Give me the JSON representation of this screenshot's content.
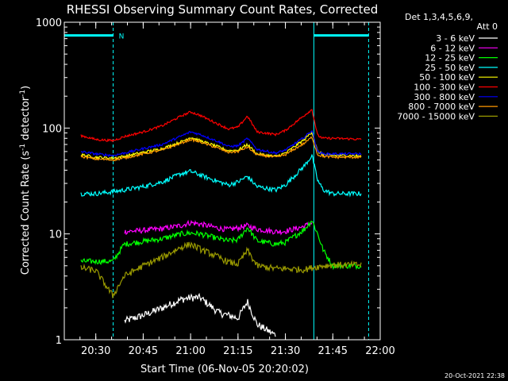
{
  "chart_data": {
    "type": "line",
    "title": "RHESSI Observing Summary Count Rates, Corrected",
    "xlabel": "Start Time (06-Nov-05 20:20:02)",
    "ylabel": "Corrected Count Rate (s⁻¹ detector⁻¹)",
    "ylabel_parts": {
      "main": "Corrected Count Rate (s",
      "sup1": "-1",
      "mid": " detector",
      "sup2": "-1",
      "end": ")"
    },
    "yscale": "log",
    "ylim": [
      1,
      1000
    ],
    "xlim": [
      "20:20:02",
      "22:00"
    ],
    "x_ticks": [
      "20:30",
      "20:45",
      "21:00",
      "21:15",
      "21:30",
      "21:45",
      "22:00"
    ],
    "y_ticks": [
      "1",
      "10",
      "100",
      "1000"
    ],
    "legend_header": [
      "Det 1,3,4,5,6,9,",
      "Att 0"
    ],
    "legend_position": "right",
    "timestamp": "20-Oct-2021 22:38",
    "annotations": [
      {
        "label": "N",
        "x": "20:35:30"
      }
    ],
    "markers": [
      {
        "type": "vline",
        "x": "20:20:02",
        "color": "#00ffff",
        "style": "solid"
      },
      {
        "type": "vline",
        "x": "20:35:30",
        "color": "#00ffff",
        "style": "dashed"
      },
      {
        "type": "vline",
        "x": "21:39:00",
        "color": "#00ffff",
        "style": "solid"
      },
      {
        "type": "vline",
        "x": "21:56:20",
        "color": "#00ffff",
        "style": "dashed"
      }
    ],
    "night_bars": [
      {
        "x": [
          "20:20:02",
          "20:35:30"
        ],
        "y": 750
      },
      {
        "x": [
          "21:39:00",
          "21:56:20"
        ],
        "y": 750
      }
    ],
    "x_hours": [
      20.42,
      20.5,
      20.59,
      20.65,
      20.75,
      20.85,
      20.95,
      21.0,
      21.05,
      21.15,
      21.2,
      21.25,
      21.3,
      21.35,
      21.45,
      21.5,
      21.6,
      21.64,
      21.67,
      21.7,
      21.75,
      21.85,
      21.9
    ],
    "series": [
      {
        "name": "3 - 6 keV",
        "color": "#ffffff",
        "values": [
          null,
          null,
          null,
          1.5,
          1.7,
          2.0,
          2.4,
          2.5,
          2.5,
          1.8,
          1.7,
          1.6,
          2.3,
          1.4,
          1.1,
          null,
          null,
          null,
          null,
          null,
          null,
          null,
          null
        ]
      },
      {
        "name": "6 - 12 keV",
        "color": "#ff00ff",
        "values": [
          null,
          null,
          null,
          10.5,
          10.8,
          11.2,
          12.0,
          12.8,
          12.4,
          11.3,
          11.0,
          11.4,
          12.0,
          11.1,
          10.5,
          10.6,
          11.8,
          12.8,
          null,
          null,
          null,
          null,
          null
        ]
      },
      {
        "name": "12 - 25 keV",
        "color": "#00ff00",
        "values": [
          5.5,
          5.5,
          5.5,
          8.0,
          8.5,
          9.0,
          10.0,
          10.2,
          10.0,
          9.0,
          8.6,
          8.8,
          11.5,
          8.6,
          8.0,
          8.3,
          11.0,
          13.5,
          10.0,
          7.0,
          5.0,
          5.0,
          5.0
        ]
      },
      {
        "name": "25 - 50 keV",
        "color": "#00ffff",
        "values": [
          24,
          24,
          25,
          26,
          28,
          31,
          37,
          39,
          36,
          31,
          29,
          31,
          35,
          28,
          26,
          29,
          44,
          55,
          32,
          26,
          24,
          24,
          24
        ]
      },
      {
        "name": "50 - 100 keV",
        "color": "#ffff00",
        "values": [
          56,
          53,
          52,
          54,
          59,
          64,
          74,
          82,
          76,
          66,
          61,
          62,
          70,
          57,
          54,
          58,
          78,
          92,
          60,
          56,
          55,
          55,
          54
        ]
      },
      {
        "name": "100 - 300 keV",
        "color": "#ff0000",
        "values": [
          85,
          78,
          76,
          83,
          92,
          105,
          130,
          142,
          132,
          108,
          98,
          102,
          130,
          92,
          87,
          95,
          132,
          150,
          85,
          80,
          80,
          79,
          78
        ]
      },
      {
        "name": "300 - 800 keV",
        "color": "#0000ff",
        "values": [
          60,
          57,
          55,
          58,
          64,
          70,
          84,
          92,
          87,
          74,
          67,
          68,
          80,
          63,
          58,
          62,
          82,
          95,
          60,
          57,
          57,
          57,
          57
        ]
      },
      {
        "name": "800 - 7000 keV",
        "color": "#ff9900",
        "values": [
          54,
          51,
          50,
          52,
          57,
          62,
          72,
          78,
          74,
          64,
          59,
          60,
          66,
          56,
          53,
          56,
          72,
          82,
          56,
          54,
          53,
          53,
          53
        ]
      },
      {
        "name": "7000 - 15000 keV",
        "color": "#999900",
        "values": [
          4.8,
          4.5,
          2.6,
          4.0,
          5.0,
          6.0,
          7.5,
          8.0,
          7.2,
          6.0,
          5.4,
          5.2,
          7.0,
          5.0,
          4.7,
          4.7,
          4.6,
          4.8,
          4.9,
          5.0,
          5.1,
          5.1,
          5.1
        ]
      }
    ]
  }
}
